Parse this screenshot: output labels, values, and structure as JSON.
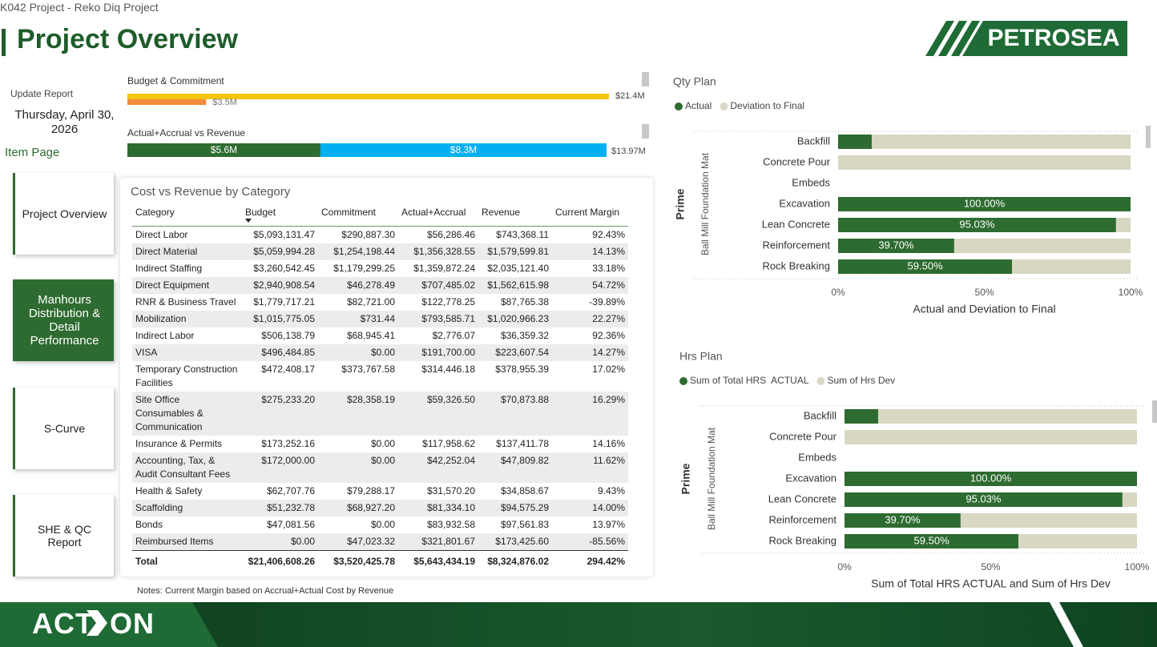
{
  "header": {
    "breadcrumb": "K042 Project - Reko Diq Project",
    "title": "Project Overview",
    "logo": "PETROSEA"
  },
  "sidebar": {
    "update_label": "Update Report",
    "date": "Thursday, April 30, 2026",
    "section": "Item Page",
    "buttons": [
      "Project Overview",
      "Manhours Distribution & Detail Performance",
      "S-Curve",
      "SHE & QC Report"
    ],
    "active": 1
  },
  "summary": [
    {
      "title": "Budget & Commitment",
      "layout": "overlap",
      "items": [
        {
          "value": 21.4,
          "label": "$21.4M",
          "color": "#f2c511"
        },
        {
          "value": 3.5,
          "label": "$3.5M",
          "color": "#f28b3c"
        }
      ]
    },
    {
      "title": "Actual+Accrual vs Revenue",
      "layout": "stacked",
      "items": [
        {
          "value": 5.6,
          "label": "$5.6M",
          "color": "#2e6b30"
        },
        {
          "value": 8.3,
          "label": "$8.3M",
          "color": "#00b0f0"
        }
      ],
      "total": {
        "value": 13.97,
        "label": "$13.97M"
      }
    }
  ],
  "table": {
    "title": "Cost vs Revenue by Category",
    "columns": [
      "Category",
      "Budget",
      "Commitment",
      "Actual+Accrual",
      "Revenue",
      "Current Margin"
    ],
    "rows": [
      [
        "Direct Labor",
        "$5,093,131.47",
        "$290,887.30",
        "$56,286.46",
        "$743,368.11",
        "92.43%"
      ],
      [
        "Direct Material",
        "$5,059,994.28",
        "$1,254,198.44",
        "$1,356,328.55",
        "$1,579,599.81",
        "14.13%"
      ],
      [
        "Indirect Staffing",
        "$3,260,542.45",
        "$1,179,299.25",
        "$1,359,872.24",
        "$2,035,121.40",
        "33.18%"
      ],
      [
        "Direct Equipment",
        "$2,940,908.54",
        "$46,278.49",
        "$707,485.02",
        "$1,562,615.98",
        "54.72%"
      ],
      [
        "RNR & Business Travel",
        "$1,779,717.21",
        "$82,721.00",
        "$122,778.25",
        "$87,765.38",
        "-39.89%"
      ],
      [
        "Mobilization",
        "$1,015,775.05",
        "$731.44",
        "$793,585.71",
        "$1,020,966.23",
        "22.27%"
      ],
      [
        "Indirect Labor",
        "$506,138.79",
        "$68,945.41",
        "$2,776.07",
        "$36,359.32",
        "92.36%"
      ],
      [
        "VISA",
        "$496,484.85",
        "$0.00",
        "$191,700.00",
        "$223,607.54",
        "14.27%"
      ],
      [
        "Temporary Construction Facilities",
        "$472,408.17",
        "$373,767.58",
        "$314,446.18",
        "$378,955.39",
        "17.02%"
      ],
      [
        "Site Office Consumables & Communication",
        "$275,233.20",
        "$28,358.19",
        "$59,326.50",
        "$70,873.88",
        "16.29%"
      ],
      [
        "Insurance & Permits",
        "$173,252.16",
        "$0.00",
        "$117,958.62",
        "$137,411.78",
        "14.16%"
      ],
      [
        "Accounting, Tax, & Audit Consultant Fees",
        "$172,000.00",
        "$0.00",
        "$42,252.04",
        "$47,809.82",
        "11.62%"
      ],
      [
        "Health & Safety",
        "$62,707.76",
        "$79,288.17",
        "$31,570.20",
        "$34,858.67",
        "9.43%"
      ],
      [
        "Scaffolding",
        "$51,232.78",
        "$68,927.20",
        "$81,334.10",
        "$94,575.29",
        "14.00%"
      ],
      [
        "Bonds",
        "$47,081.56",
        "$0.00",
        "$83,932.58",
        "$97,561.83",
        "13.97%"
      ],
      [
        "Reimbursed Items",
        "$0.00",
        "$47,023.32",
        "$321,801.67",
        "$173,425.60",
        "-85.56%"
      ]
    ],
    "indicators": [
      "circle",
      "circle",
      "circle",
      "circle",
      "diamond",
      "circle",
      "circle",
      "circle",
      "circle",
      "circle",
      "circle",
      "diamond",
      "diamond",
      "circle",
      "diamond",
      "diamond"
    ],
    "total": [
      "Total",
      "$21,406,608.26",
      "$3,520,425.78",
      "$5,643,434.19",
      "$8,324,876.02",
      "294.42%"
    ],
    "notes": "Notes: Current Margin based on Accrual+Actual Cost by Revenue"
  },
  "chart_data": [
    {
      "type": "bar",
      "orientation": "horizontal",
      "stacked": true,
      "title": "Qty Plan",
      "group_labels": [
        "Prime",
        "Ball Mill Foundation Mat"
      ],
      "categories": [
        "Backfill",
        "Concrete Pour",
        "Embeds",
        "Excavation",
        "Lean Concrete",
        "Reinforcement",
        "Rock Breaking"
      ],
      "series": [
        {
          "name": "Actual",
          "color": "#2e6b30",
          "values": [
            11.5,
            0,
            null,
            100,
            95.03,
            39.7,
            59.5
          ],
          "value_labels": [
            null,
            null,
            null,
            "100.00%",
            "95.03%",
            "39.70%",
            "59.50%"
          ]
        },
        {
          "name": "Deviation to Final",
          "color": "#d8d8c2",
          "values": [
            88.5,
            100,
            null,
            0,
            4.97,
            60.3,
            40.5
          ]
        }
      ],
      "xlim": [
        0,
        100
      ],
      "xticks": [
        {
          "value": 0,
          "label": "0%"
        },
        {
          "value": 50,
          "label": "50%"
        },
        {
          "value": 100,
          "label": "100%"
        }
      ],
      "xlabel": "Actual and Deviation to Final"
    },
    {
      "type": "bar",
      "orientation": "horizontal",
      "stacked": true,
      "title": "Hrs Plan",
      "group_labels": [
        "Prime",
        "Ball Mill Foundation Mat"
      ],
      "categories": [
        "Backfill",
        "Concrete Pour",
        "Embeds",
        "Excavation",
        "Lean Concrete",
        "Reinforcement",
        "Rock Breaking"
      ],
      "series": [
        {
          "name": "Sum of Total HRS  ACTUAL",
          "color": "#2e6b30",
          "values": [
            11.5,
            0,
            null,
            100,
            95.03,
            39.7,
            59.5
          ],
          "value_labels": [
            null,
            null,
            null,
            "100.00%",
            "95.03%",
            "39.70%",
            "59.50%"
          ]
        },
        {
          "name": "Sum of Hrs Dev",
          "color": "#d8d8c2",
          "values": [
            88.5,
            100,
            null,
            0,
            4.97,
            60.3,
            40.5
          ]
        }
      ],
      "xlim": [
        0,
        100
      ],
      "xticks": [
        {
          "value": 0,
          "label": "0%"
        },
        {
          "value": 50,
          "label": "50%"
        },
        {
          "value": 100,
          "label": "100%"
        }
      ],
      "xlabel": "Sum of Total HRS ACTUAL and Sum of Hrs Dev"
    }
  ],
  "footer": {
    "logo_left": "ACT",
    "logo_right": "ON"
  }
}
